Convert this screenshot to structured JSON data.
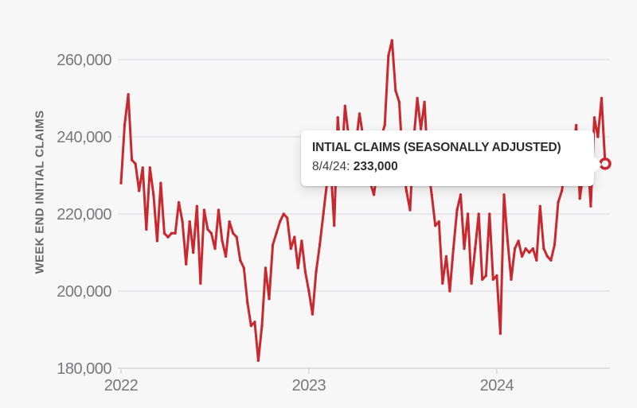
{
  "page": {
    "background_color": "#f7f7f8"
  },
  "chart_data": {
    "type": "line",
    "ylabel": "WEEK END INITIAL CLAIMS",
    "x_tick_labels": [
      "2022",
      "2023",
      "2024"
    ],
    "x_tick_week_indices": [
      0,
      52,
      104
    ],
    "y_tick_values": [
      180000,
      200000,
      220000,
      240000,
      260000
    ],
    "y_tick_labels": [
      "180,000",
      "200,000",
      "220,000",
      "240,000",
      "260,000"
    ],
    "ylim": [
      180000,
      267000
    ],
    "grid": true,
    "legend_position": "none",
    "line_color": "#c9292e",
    "series": [
      {
        "name": "Initial Claims (Seasonally Adjusted)",
        "cadence": "weekly",
        "values": [
          228000,
          243000,
          251000,
          234000,
          233000,
          226000,
          232000,
          216000,
          232000,
          225000,
          213000,
          228000,
          215000,
          214000,
          215000,
          215000,
          223000,
          218000,
          207000,
          218000,
          210000,
          222000,
          202000,
          221000,
          216000,
          215000,
          211000,
          221000,
          213000,
          209000,
          218000,
          215000,
          214000,
          208000,
          206000,
          197000,
          191000,
          192000,
          182000,
          191000,
          206000,
          198000,
          212000,
          215000,
          218000,
          220000,
          219000,
          211000,
          214000,
          206000,
          213000,
          205000,
          200000,
          194000,
          205000,
          212000,
          220000,
          228000,
          233000,
          217000,
          245000,
          232000,
          248000,
          240000,
          235000,
          238000,
          246000,
          240000,
          232000,
          228000,
          225000,
          232000,
          240000,
          243000,
          261000,
          265000,
          252000,
          249000,
          233000,
          226000,
          221000,
          239000,
          250000,
          242000,
          249000,
          232000,
          225000,
          217000,
          218000,
          202000,
          209000,
          200000,
          211000,
          221000,
          225000,
          211000,
          220000,
          202000,
          211000,
          220000,
          203000,
          204000,
          220000,
          203000,
          204000,
          189000,
          225000,
          213000,
          203000,
          211000,
          213000,
          209000,
          211000,
          210000,
          211000,
          208000,
          222000,
          211000,
          209000,
          208000,
          212000,
          223000,
          226000,
          232000,
          238000,
          236000,
          243000,
          224000,
          231000,
          238000,
          222000,
          245000,
          240000,
          250000,
          233000
        ]
      }
    ],
    "last_point": {
      "date": "8/4/24",
      "value": 233000,
      "marker": "open-circle"
    }
  },
  "tooltip": {
    "title": "INTIAL CLAIMS (SEASONALLY ADJUSTED)",
    "date_label": "8/4/24:",
    "value": "233,000"
  }
}
